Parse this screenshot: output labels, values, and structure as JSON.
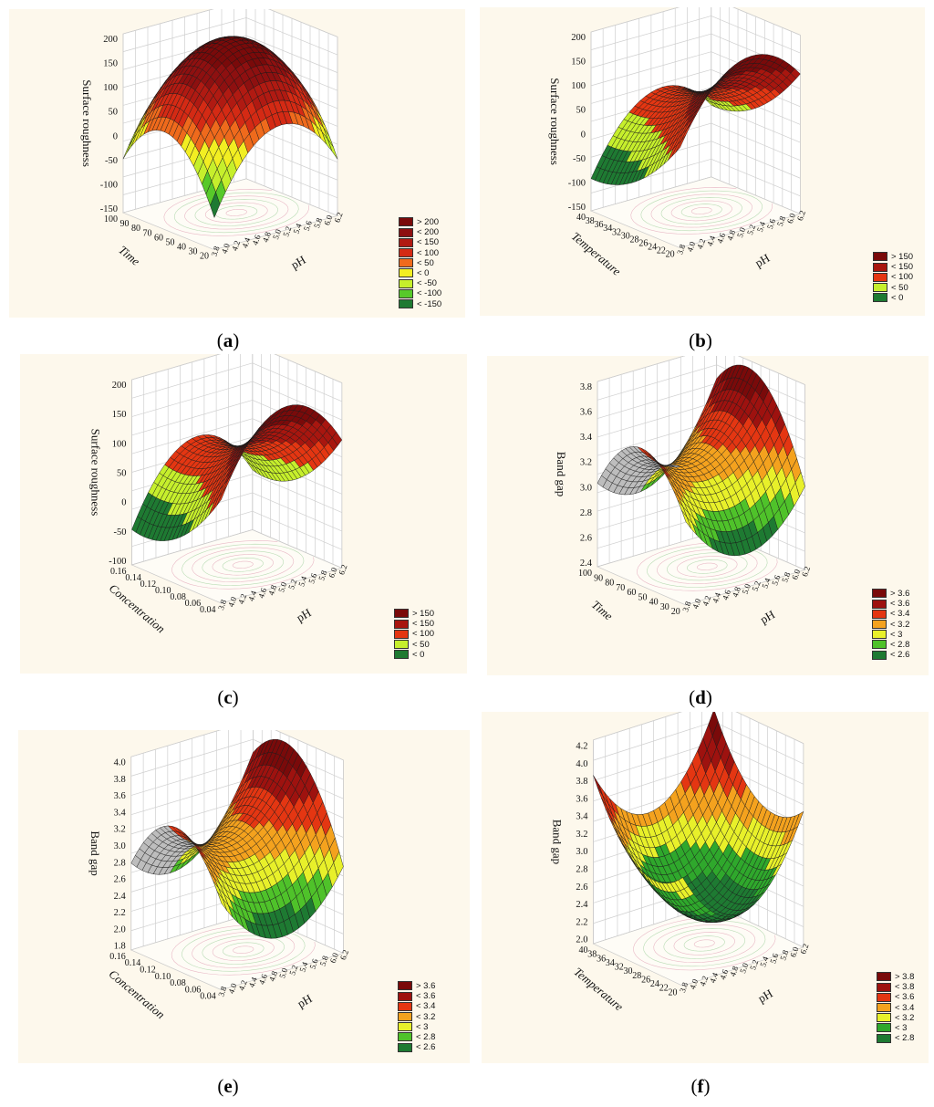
{
  "chart_data": [
    {
      "type": "surface3d",
      "panel_label": "a",
      "zlabel": "Surface roughness",
      "xlabel": "pH",
      "ylabel": "Time",
      "zticks": [
        "200",
        "150",
        "100",
        "50",
        "0",
        "-50",
        "-100",
        "-150"
      ],
      "xticks": [
        "3.8",
        "4.0",
        "4.2",
        "4.4",
        "4.6",
        "4.8",
        "5.0",
        "5.2",
        "5.4",
        "5.6",
        "5.8",
        "6.0",
        "6.2"
      ],
      "yticks": [
        "20",
        "30",
        "40",
        "50",
        "60",
        "70",
        "80",
        "90",
        "100"
      ],
      "legend": [
        "> 200",
        "< 200",
        "< 150",
        "< 100",
        "< 50",
        "< 0",
        "< -50",
        "< -100",
        "< -150"
      ],
      "legend_colors": [
        "#7a0a0a",
        "#8e1010",
        "#b01a12",
        "#d42a14",
        "#ef6a1c",
        "#f2ee22",
        "#c6ef2c",
        "#57c92a",
        "#1e7a32"
      ]
    },
    {
      "type": "surface3d",
      "panel_label": "b",
      "zlabel": "Surface roughness",
      "xlabel": "pH",
      "ylabel": "Temperature",
      "zticks": [
        "200",
        "150",
        "100",
        "50",
        "0",
        "-50",
        "-100",
        "-150"
      ],
      "xticks": [
        "3.8",
        "4.0",
        "4.2",
        "4.4",
        "4.6",
        "4.8",
        "5.0",
        "5.2",
        "5.4",
        "5.6",
        "5.8",
        "6.0",
        "6.2"
      ],
      "yticks": [
        "20",
        "22",
        "24",
        "26",
        "28",
        "30",
        "32",
        "34",
        "36",
        "38",
        "40"
      ],
      "legend": [
        "> 150",
        "< 150",
        "< 100",
        "< 50",
        "< 0"
      ],
      "legend_colors": [
        "#7a0a0a",
        "#a8160f",
        "#e43612",
        "#c6ef2c",
        "#1e7a32"
      ]
    },
    {
      "type": "surface3d",
      "panel_label": "c",
      "zlabel": "Surface roughness",
      "xlabel": "pH",
      "ylabel": "Concentration",
      "zticks": [
        "200",
        "150",
        "100",
        "50",
        "0",
        "-50",
        "-100"
      ],
      "xticks": [
        "3.8",
        "4.0",
        "4.2",
        "4.4",
        "4.6",
        "4.8",
        "5.0",
        "5.2",
        "5.4",
        "5.6",
        "5.8",
        "6.0",
        "6.2"
      ],
      "yticks": [
        "0.04",
        "0.06",
        "0.08",
        "0.10",
        "0.12",
        "0.14",
        "0.16"
      ],
      "legend": [
        "> 150",
        "< 150",
        "< 100",
        "< 50",
        "< 0"
      ],
      "legend_colors": [
        "#7a0a0a",
        "#a8160f",
        "#e43612",
        "#c6ef2c",
        "#1e7a32"
      ]
    },
    {
      "type": "surface3d",
      "panel_label": "d",
      "zlabel": "Band gap",
      "xlabel": "pH",
      "ylabel": "Time",
      "zticks": [
        "3.8",
        "3.6",
        "3.4",
        "3.2",
        "3.0",
        "2.8",
        "2.6",
        "2.4"
      ],
      "xticks": [
        "3.8",
        "4.0",
        "4.2",
        "4.4",
        "4.6",
        "4.8",
        "5.0",
        "5.2",
        "5.4",
        "5.6",
        "5.8",
        "6.0",
        "6.2"
      ],
      "yticks": [
        "20",
        "30",
        "40",
        "50",
        "60",
        "70",
        "80",
        "90",
        "100"
      ],
      "legend": [
        "> 3.6",
        "< 3.6",
        "< 3.4",
        "< 3.2",
        "< 3",
        "< 2.8",
        "< 2.6"
      ],
      "legend_colors": [
        "#7a0a0a",
        "#9e120f",
        "#e43612",
        "#f4a21e",
        "#e8f02a",
        "#4fc22a",
        "#1e7a32"
      ]
    },
    {
      "type": "surface3d",
      "panel_label": "e",
      "zlabel": "Band gap",
      "xlabel": "pH",
      "ylabel": "Concentration",
      "zticks": [
        "4.0",
        "3.8",
        "3.6",
        "3.4",
        "3.2",
        "3.0",
        "2.8",
        "2.6",
        "2.4",
        "2.2",
        "2.0",
        "1.8"
      ],
      "xticks": [
        "3.8",
        "4.0",
        "4.2",
        "4.4",
        "4.6",
        "4.8",
        "5.0",
        "5.2",
        "5.4",
        "5.6",
        "5.8",
        "6.0",
        "6.2"
      ],
      "yticks": [
        "0.04",
        "0.06",
        "0.08",
        "0.10",
        "0.12",
        "0.14",
        "0.16"
      ],
      "legend": [
        "> 3.6",
        "< 3.6",
        "< 3.4",
        "< 3.2",
        "< 3",
        "< 2.8",
        "< 2.6"
      ],
      "legend_colors": [
        "#7a0a0a",
        "#9e120f",
        "#e43612",
        "#f4a21e",
        "#e8f02a",
        "#4fc22a",
        "#1e7a32"
      ]
    },
    {
      "type": "surface3d",
      "panel_label": "f",
      "zlabel": "Band gap",
      "xlabel": "pH",
      "ylabel": "Temperature",
      "zticks": [
        "4.2",
        "4.0",
        "3.8",
        "3.6",
        "3.4",
        "3.2",
        "3.0",
        "2.8",
        "2.6",
        "2.4",
        "2.2",
        "2.0"
      ],
      "xticks": [
        "3.8",
        "4.0",
        "4.2",
        "4.4",
        "4.6",
        "4.8",
        "5.0",
        "5.2",
        "5.4",
        "5.6",
        "5.8",
        "6.0",
        "6.2"
      ],
      "yticks": [
        "20",
        "22",
        "24",
        "26",
        "28",
        "30",
        "32",
        "34",
        "36",
        "38",
        "40"
      ],
      "legend": [
        "> 3.8",
        "< 3.8",
        "< 3.6",
        "< 3.4",
        "< 3.2",
        "< 3",
        "< 2.8"
      ],
      "legend_colors": [
        "#7a0a0a",
        "#9e120f",
        "#e43612",
        "#f4a21e",
        "#e8f02a",
        "#2fa82c",
        "#1e7a32"
      ]
    }
  ]
}
